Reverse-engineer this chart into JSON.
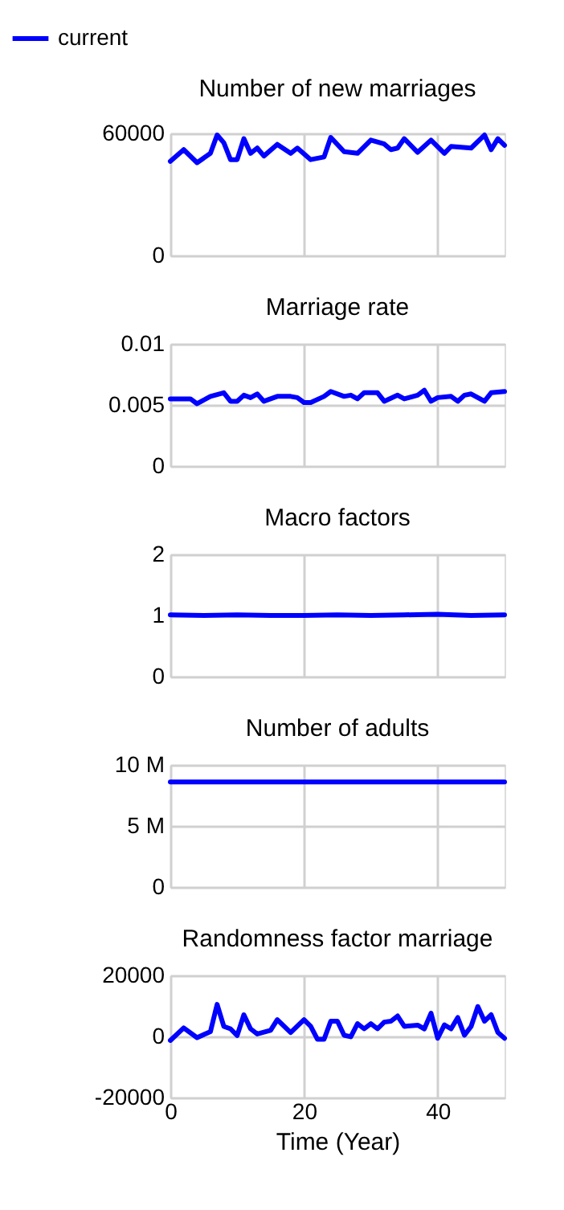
{
  "chart_data": [
    {
      "type": "line",
      "title": "Number of new marriages",
      "legend": "top left",
      "grid": true,
      "tick_labels": "y",
      "xlim": [
        0,
        50
      ],
      "xticks": [
        0,
        20,
        40
      ],
      "ylim": [
        0,
        60000
      ],
      "yticks": [
        0,
        60000
      ],
      "x": [
        0,
        2,
        4,
        6,
        7,
        8,
        9,
        10,
        11,
        12,
        13,
        14,
        16,
        18,
        19,
        21,
        23,
        24,
        26,
        28,
        30,
        32,
        33,
        34,
        35,
        37,
        39,
        41,
        42,
        45,
        47,
        48,
        49,
        50
      ],
      "series": [
        {
          "name": "current",
          "color": "#0000ff",
          "values": [
            46300,
            52000,
            45600,
            50200,
            59200,
            55400,
            47100,
            47100,
            57400,
            50200,
            52800,
            48900,
            54600,
            50200,
            52800,
            47100,
            48400,
            58000,
            51000,
            50200,
            56700,
            54800,
            52000,
            52800,
            57400,
            50700,
            56700,
            50200,
            53600,
            52800,
            59200,
            52000,
            57400,
            54100
          ]
        }
      ]
    },
    {
      "type": "line",
      "title": "Marriage rate",
      "grid": true,
      "tick_labels": "y",
      "xlim": [
        0,
        50
      ],
      "xticks": [
        0,
        20,
        40
      ],
      "ylim": [
        0,
        0.01
      ],
      "yticks": [
        0,
        0.005,
        0.01
      ],
      "x": [
        0,
        3,
        4,
        6,
        8,
        9,
        10,
        11,
        12,
        13,
        14,
        16,
        18,
        19,
        20,
        21,
        23,
        24,
        26,
        27,
        28,
        29,
        31,
        32,
        34,
        35,
        37,
        38,
        39,
        40,
        42,
        43,
        44,
        45,
        47,
        48,
        50
      ],
      "series": [
        {
          "color": "#0000ff",
          "values": [
            0.0055,
            0.0055,
            0.0051,
            0.0057,
            0.006,
            0.0053,
            0.0053,
            0.0058,
            0.0056,
            0.0059,
            0.0053,
            0.0057,
            0.0057,
            0.0056,
            0.0052,
            0.0052,
            0.0057,
            0.0061,
            0.0057,
            0.0058,
            0.0055,
            0.006,
            0.006,
            0.0053,
            0.0058,
            0.0055,
            0.0058,
            0.0062,
            0.0053,
            0.0056,
            0.0057,
            0.0053,
            0.0058,
            0.0059,
            0.0053,
            0.006,
            0.0061
          ]
        }
      ]
    },
    {
      "type": "line",
      "title": "Macro factors",
      "grid": true,
      "tick_labels": "y",
      "xlim": [
        0,
        50
      ],
      "xticks": [
        0,
        20,
        40
      ],
      "ylim": [
        0,
        2
      ],
      "yticks": [
        0,
        1,
        2
      ],
      "x": [
        0,
        5,
        10,
        15,
        20,
        25,
        30,
        35,
        40,
        45,
        50
      ],
      "series": [
        {
          "color": "#0000ff",
          "values": [
            1.01,
            1.0,
            1.01,
            1.0,
            1.0,
            1.01,
            1.0,
            1.01,
            1.02,
            1.0,
            1.01
          ]
        }
      ]
    },
    {
      "type": "line",
      "title": "Number of adults",
      "grid": true,
      "tick_labels": "y",
      "xlim": [
        0,
        50
      ],
      "xticks": [
        0,
        20,
        40
      ],
      "ylim": [
        0,
        10000000
      ],
      "yticks": [
        0,
        {
          "value": 5000000,
          "label": "5 M"
        },
        {
          "value": 10000000,
          "label": "10 M"
        }
      ],
      "x": [
        0,
        10,
        20,
        30,
        40,
        50
      ],
      "series": [
        {
          "color": "#0000ff",
          "values": [
            8600000,
            8600000,
            8600000,
            8600000,
            8600000,
            8600000
          ]
        }
      ]
    },
    {
      "type": "line",
      "title": "Randomness factor marriage",
      "xlabel": "Time (Year)",
      "grid": true,
      "xlim": [
        0,
        50
      ],
      "xticks": [
        0,
        20,
        40
      ],
      "ylim": [
        -20000,
        20000
      ],
      "yticks": [
        -20000,
        0,
        20000
      ],
      "x": [
        0,
        2,
        4,
        6,
        7,
        8,
        9,
        10,
        11,
        12,
        13,
        15,
        16,
        18,
        20,
        21,
        22,
        23,
        24,
        25,
        26,
        27,
        28,
        29,
        30,
        31,
        32,
        33,
        34,
        35,
        37,
        38,
        39,
        40,
        41,
        42,
        43,
        44,
        45,
        46,
        47,
        48,
        49,
        50
      ],
      "series": [
        {
          "color": "#0000ff",
          "values": [
            -1300,
            2800,
            -400,
            1600,
            10500,
            3300,
            2500,
            300,
            7100,
            2500,
            800,
            2000,
            5500,
            1300,
            5500,
            3300,
            -900,
            -900,
            5000,
            5000,
            400,
            -100,
            4200,
            2500,
            4200,
            2500,
            4700,
            5000,
            6700,
            3300,
            3700,
            2500,
            7600,
            -600,
            3800,
            2500,
            6200,
            400,
            3300,
            9800,
            5000,
            7100,
            1300,
            -600
          ]
        }
      ]
    }
  ]
}
